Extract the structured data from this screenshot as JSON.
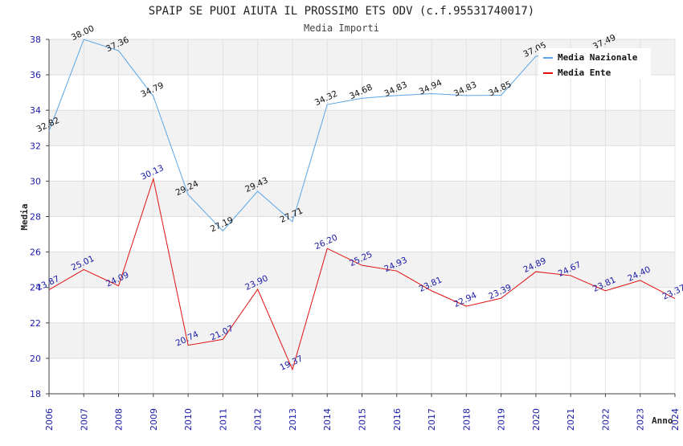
{
  "chart_data": {
    "type": "line",
    "title": "SPAIP SE PUOI AIUTA IL PROSSIMO ETS ODV (c.f.95531740017)",
    "subtitle": "Media Importi",
    "xlabel": "Anno",
    "ylabel": "Media",
    "ylim": [
      18,
      38
    ],
    "yticks": [
      18,
      20,
      22,
      24,
      26,
      28,
      30,
      32,
      34,
      36,
      38
    ],
    "x": [
      "2006",
      "2007",
      "2008",
      "2009",
      "2010",
      "2011",
      "2012",
      "2013",
      "2014",
      "2015",
      "2016",
      "2017",
      "2018",
      "2019",
      "2020",
      "2021",
      "2022",
      "2023",
      "2024"
    ],
    "grid": true,
    "legend_position": "top-right",
    "series": [
      {
        "name": "Media Nazionale",
        "color": "#5aa5e6",
        "values": [
          32.82,
          38.0,
          37.36,
          34.79,
          29.24,
          27.19,
          29.43,
          27.71,
          34.32,
          34.68,
          34.83,
          34.94,
          34.83,
          34.85,
          37.05,
          null,
          37.49,
          null,
          null
        ],
        "labels": [
          "32.82",
          "38.00",
          "37.36",
          "34.79",
          "29.24",
          "27.19",
          "29.43",
          "27.71",
          "34.32",
          "34.68",
          "34.83",
          "34.94",
          "34.83",
          "34.85",
          "37.05",
          "",
          "37.49",
          "",
          ""
        ]
      },
      {
        "name": "Media Ente",
        "color": "#e01010",
        "values": [
          23.87,
          25.01,
          24.09,
          30.13,
          20.74,
          21.07,
          23.9,
          19.37,
          26.2,
          25.25,
          24.93,
          23.81,
          22.94,
          23.39,
          24.89,
          24.67,
          23.81,
          24.4,
          23.37
        ],
        "labels": [
          "23.87",
          "25.01",
          "24.09",
          "30.13",
          "20.74",
          "21.07",
          "23.90",
          "19.37",
          "26.20",
          "25.25",
          "24.93",
          "23.81",
          "22.94",
          "23.39",
          "24.89",
          "24.67",
          "23.81",
          "24.40",
          "23.37"
        ]
      }
    ]
  }
}
